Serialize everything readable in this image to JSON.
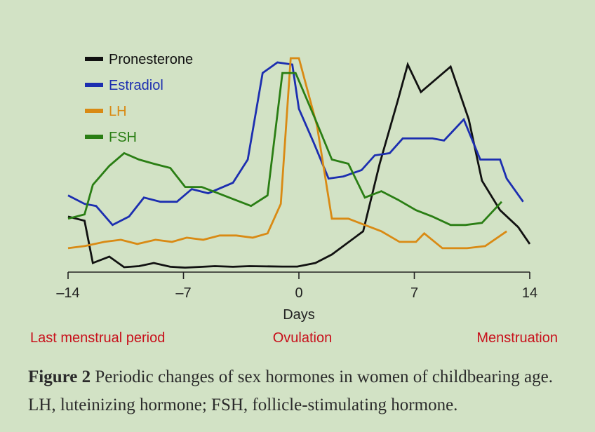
{
  "chart_data": {
    "type": "line",
    "xlabel": "Days",
    "xlim": [
      -14,
      14
    ],
    "ylim": [
      0,
      100
    ],
    "x_ticks": [
      -14,
      -7,
      0,
      7,
      14
    ],
    "x_tick_labels": [
      "–14",
      "–7",
      "0",
      "7",
      "14"
    ],
    "grid": false,
    "legend_position": "top-left",
    "phase_labels": [
      {
        "text": "Last menstrual period",
        "color": "#c8101b"
      },
      {
        "text": "Ovulation",
        "color": "#c8101b"
      },
      {
        "text": "Menstruation",
        "color": "#c8101b"
      }
    ],
    "series": [
      {
        "name": "Pronesterone",
        "color": "#111111",
        "x": [
          -14,
          -13,
          -12.5,
          -11.5,
          -10.6,
          -9.7,
          -8.8,
          -7.8,
          -6.9,
          -5.1,
          -4.0,
          -3.0,
          -1.0,
          -0.1,
          1.0,
          2.0,
          3.9,
          4.9,
          6.0,
          6.6,
          7.4,
          9.2,
          10.3,
          11.1,
          12.2,
          13.3,
          14
        ]
      },
      {
        "name": "Estradiol",
        "color": "#1c2eb0",
        "x": [
          -14,
          -13,
          -12.3,
          -11.3,
          -10.3,
          -9.4,
          -8.4,
          -7.4,
          -6.5,
          -5.5,
          -4.0,
          -3.1,
          -2.2,
          -1.3,
          -0.4,
          0,
          0.9,
          1.8,
          2.7,
          3.8,
          4.6,
          5.5,
          6.3,
          7.3,
          8.1,
          8.8,
          10.0,
          11.0,
          12.2,
          12.6,
          13.6
        ]
      },
      {
        "name": "LH",
        "color": "#d98a14",
        "x": [
          -14,
          -13,
          -11.8,
          -10.8,
          -9.8,
          -8.7,
          -7.7,
          -6.8,
          -5.8,
          -4.8,
          -3.8,
          -2.8,
          -1.9,
          -1.1,
          -0.5,
          0,
          1.1,
          2.0,
          3.0,
          4.0,
          5.0,
          6.1,
          7.1,
          7.6,
          8.7,
          10.2,
          11.3,
          12.6
        ]
      },
      {
        "name": "FSH",
        "color": "#2a7e14",
        "x": [
          -14,
          -13,
          -12.5,
          -11.5,
          -10.6,
          -9.7,
          -8.8,
          -7.8,
          -6.9,
          -5.9,
          -4.9,
          -3.9,
          -2.9,
          -1.9,
          -1.0,
          -0.2,
          1.0,
          2.0,
          3.0,
          4.0,
          5.0,
          6.0,
          7.1,
          8.1,
          9.2,
          10.1,
          11.1,
          12.3
        ]
      }
    ],
    "y_values": {
      "Pronesterone": [
        25,
        23,
        3,
        6,
        1,
        1.5,
        3,
        1.2,
        0.8,
        1.5,
        1.2,
        1.5,
        1.3,
        1.3,
        3,
        7,
        18,
        50,
        80,
        97,
        84,
        96,
        71,
        42,
        28,
        20,
        12
      ],
      "Estradiol": [
        35,
        31,
        30,
        21,
        25,
        34,
        32,
        32,
        38,
        36,
        41,
        52,
        93,
        98,
        97,
        76,
        60,
        43,
        44,
        47,
        54,
        55,
        62,
        62,
        62,
        61,
        71,
        52,
        52,
        43,
        32
      ],
      "LH": [
        10,
        11,
        13,
        14,
        12,
        14,
        13,
        15,
        14,
        16,
        16,
        15,
        17,
        31,
        100,
        100,
        68,
        24,
        24,
        21,
        18,
        13,
        13,
        17,
        10,
        10,
        11,
        18
      ],
      "FSH": [
        24,
        26,
        40,
        49,
        55,
        52,
        50,
        48,
        39,
        39,
        36,
        33,
        30,
        35,
        93,
        93,
        71,
        52,
        50,
        34,
        37,
        33,
        28,
        25,
        21,
        21,
        22,
        32
      ]
    }
  },
  "caption": {
    "label": "Figure 2",
    "text": " Periodic changes of sex hormones in women of childbearing age. LH, luteinizing hormone; FSH, follicle-stimulating hormone."
  }
}
